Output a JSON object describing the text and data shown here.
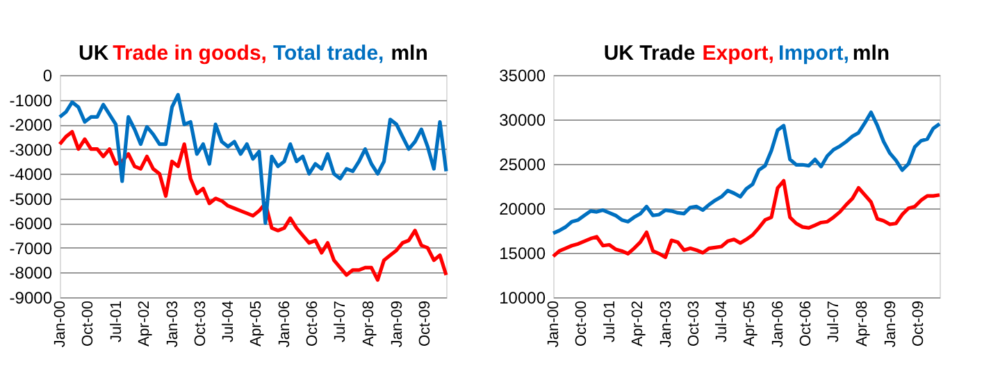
{
  "chart_data": [
    {
      "type": "line",
      "title": "UK",
      "ylabel": "mln",
      "x": [
        "2000-01",
        "2000-03",
        "2000-05",
        "2000-07",
        "2000-09",
        "2000-11",
        "2001-01",
        "2001-03",
        "2001-05",
        "2001-07",
        "2001-09",
        "2001-11",
        "2002-01",
        "2002-03",
        "2002-05",
        "2002-07",
        "2002-09",
        "2002-11",
        "2003-01",
        "2003-03",
        "2003-05",
        "2003-07",
        "2003-09",
        "2003-11",
        "2004-01",
        "2004-03",
        "2004-05",
        "2004-07",
        "2004-09",
        "2004-11",
        "2005-01",
        "2005-03",
        "2005-05",
        "2005-07",
        "2005-09",
        "2005-11",
        "2006-01",
        "2006-03",
        "2006-05",
        "2006-07",
        "2006-09",
        "2006-11",
        "2007-01",
        "2007-03",
        "2007-05",
        "2007-07",
        "2007-09",
        "2007-11",
        "2008-01",
        "2008-03",
        "2008-05",
        "2008-07",
        "2008-09",
        "2008-11",
        "2009-01",
        "2009-03",
        "2009-05",
        "2009-07",
        "2009-09",
        "2009-11",
        "2010-01",
        "2010-03",
        "2010-05"
      ],
      "series": [
        {
          "name": "Trade in goods,",
          "color": "#ff0000",
          "values": [
            -2800,
            -2500,
            -2300,
            -3000,
            -2600,
            -3000,
            -3000,
            -3300,
            -3000,
            -3600,
            -3500,
            -3200,
            -3700,
            -3800,
            -3300,
            -3800,
            -4000,
            -4900,
            -3500,
            -3700,
            -2800,
            -4200,
            -4800,
            -4600,
            -5200,
            -5000,
            -5100,
            -5300,
            -5400,
            -5500,
            -5600,
            -5700,
            -5500,
            -5200,
            -6200,
            -6300,
            -6200,
            -5800,
            -6200,
            -6500,
            -6800,
            -6700,
            -7200,
            -6800,
            -7500,
            -7800,
            -8100,
            -7900,
            -7900,
            -7800,
            -7800,
            -8300,
            -7500,
            -7300,
            -7100,
            -6800,
            -6700,
            -6300,
            -6900,
            -7000,
            -7500,
            -7300,
            -8100
          ]
        },
        {
          "name": "Total trade,",
          "color": "#0070c0",
          "values": [
            -1700,
            -1500,
            -1100,
            -1300,
            -1900,
            -1700,
            -1700,
            -1200,
            -1600,
            -2000,
            -4300,
            -1700,
            -2200,
            -2800,
            -2100,
            -2400,
            -2800,
            -2800,
            -1300,
            -800,
            -2000,
            -1900,
            -3200,
            -2800,
            -3600,
            -2000,
            -2700,
            -2900,
            -2700,
            -3200,
            -2800,
            -3400,
            -3100,
            -6000,
            -3300,
            -3700,
            -3500,
            -2800,
            -3500,
            -3300,
            -4000,
            -3600,
            -3800,
            -3200,
            -4000,
            -4200,
            -3800,
            -3900,
            -3500,
            -3000,
            -3600,
            -4000,
            -3500,
            -1800,
            -2000,
            -2500,
            -3000,
            -2700,
            -2200,
            -2900,
            -3800,
            -1900,
            -3900
          ]
        }
      ],
      "xlim": [
        "2000-01",
        "2010-05"
      ],
      "xticks": [
        {
          "value": "2000-01",
          "label": "Jan-00"
        },
        {
          "value": "2000-10",
          "label": "Oct-00"
        },
        {
          "value": "2001-07",
          "label": "Jul-01"
        },
        {
          "value": "2002-04",
          "label": "Apr-02"
        },
        {
          "value": "2003-01",
          "label": "Jan-03"
        },
        {
          "value": "2003-10",
          "label": "Oct-03"
        },
        {
          "value": "2004-07",
          "label": "Jul-04"
        },
        {
          "value": "2005-04",
          "label": "Apr-05"
        },
        {
          "value": "2006-01",
          "label": "Jan-06"
        },
        {
          "value": "2006-10",
          "label": "Oct-06"
        },
        {
          "value": "2007-07",
          "label": "Jul-07"
        },
        {
          "value": "2008-04",
          "label": "Apr-08"
        },
        {
          "value": "2009-01",
          "label": "Jan-09"
        },
        {
          "value": "2009-10",
          "label": "Oct-09"
        }
      ],
      "ylim": [
        -9000,
        0
      ],
      "yticks": [
        -9000,
        -8000,
        -7000,
        -6000,
        -5000,
        -4000,
        -3000,
        -2000,
        -1000,
        0
      ],
      "grid": "y",
      "legend": false,
      "marker": "none",
      "line_style": "solid"
    },
    {
      "type": "line",
      "title": "UK Trade",
      "ylabel": "mln",
      "x": [
        "2000-01",
        "2000-03",
        "2000-05",
        "2000-07",
        "2000-09",
        "2000-11",
        "2001-01",
        "2001-03",
        "2001-05",
        "2001-07",
        "2001-09",
        "2001-11",
        "2002-01",
        "2002-03",
        "2002-05",
        "2002-07",
        "2002-09",
        "2002-11",
        "2003-01",
        "2003-03",
        "2003-05",
        "2003-07",
        "2003-09",
        "2003-11",
        "2004-01",
        "2004-03",
        "2004-05",
        "2004-07",
        "2004-09",
        "2004-11",
        "2005-01",
        "2005-03",
        "2005-05",
        "2005-07",
        "2005-09",
        "2005-11",
        "2006-01",
        "2006-03",
        "2006-05",
        "2006-07",
        "2006-09",
        "2006-11",
        "2007-01",
        "2007-03",
        "2007-05",
        "2007-07",
        "2007-09",
        "2007-11",
        "2008-01",
        "2008-03",
        "2008-05",
        "2008-07",
        "2008-09",
        "2008-11",
        "2009-01",
        "2009-03",
        "2009-05",
        "2009-07",
        "2009-09",
        "2009-11",
        "2010-01",
        "2010-03",
        "2010-05"
      ],
      "series": [
        {
          "name": "Export,",
          "color": "#ff0000",
          "values": [
            14600,
            15200,
            15500,
            15800,
            16000,
            16300,
            16600,
            16800,
            15800,
            15900,
            15400,
            15200,
            14900,
            15500,
            16200,
            17300,
            15200,
            14900,
            14500,
            16400,
            16200,
            15300,
            15500,
            15300,
            15000,
            15500,
            15600,
            15700,
            16300,
            16500,
            16100,
            16500,
            17000,
            17800,
            18700,
            19000,
            22300,
            23100,
            19000,
            18300,
            17900,
            17800,
            18100,
            18400,
            18500,
            19000,
            19600,
            20400,
            21100,
            22300,
            21500,
            20700,
            18800,
            18600,
            18200,
            18300,
            19300,
            20000,
            20200,
            20900,
            21400,
            21400,
            21500
          ]
        },
        {
          "name": "Import,",
          "color": "#0070c0",
          "values": [
            17200,
            17500,
            17900,
            18500,
            18700,
            19200,
            19700,
            19600,
            19800,
            19500,
            19200,
            18700,
            18500,
            19000,
            19400,
            20200,
            19200,
            19300,
            19800,
            19700,
            19500,
            19400,
            20100,
            20200,
            19800,
            20400,
            20900,
            21300,
            22000,
            21700,
            21300,
            22200,
            22700,
            24300,
            24800,
            26500,
            28800,
            29300,
            25500,
            24900,
            24900,
            24800,
            25500,
            24700,
            25900,
            26600,
            27000,
            27500,
            28100,
            28500,
            29600,
            30800,
            29300,
            27500,
            26200,
            25400,
            24300,
            25000,
            26900,
            27600,
            27800,
            29000,
            29500
          ]
        }
      ],
      "xlim": [
        "2000-01",
        "2010-05"
      ],
      "xticks": [
        {
          "value": "2000-01",
          "label": "Jan-00"
        },
        {
          "value": "2000-10",
          "label": "Oct-00"
        },
        {
          "value": "2001-07",
          "label": "Jul-01"
        },
        {
          "value": "2002-04",
          "label": "Apr-02"
        },
        {
          "value": "2003-01",
          "label": "Jan-03"
        },
        {
          "value": "2003-10",
          "label": "Oct-03"
        },
        {
          "value": "2004-07",
          "label": "Jul-04"
        },
        {
          "value": "2005-04",
          "label": "Apr-05"
        },
        {
          "value": "2006-01",
          "label": "Jan-06"
        },
        {
          "value": "2006-10",
          "label": "Oct-06"
        },
        {
          "value": "2007-07",
          "label": "Jul-07"
        },
        {
          "value": "2008-04",
          "label": "Apr-08"
        },
        {
          "value": "2009-01",
          "label": "Jan-09"
        },
        {
          "value": "2009-10",
          "label": "Oct-09"
        }
      ],
      "ylim": [
        10000,
        35000
      ],
      "yticks": [
        10000,
        15000,
        20000,
        25000,
        30000,
        35000
      ],
      "grid": "y",
      "legend": false,
      "marker": "none",
      "line_style": "solid"
    }
  ]
}
